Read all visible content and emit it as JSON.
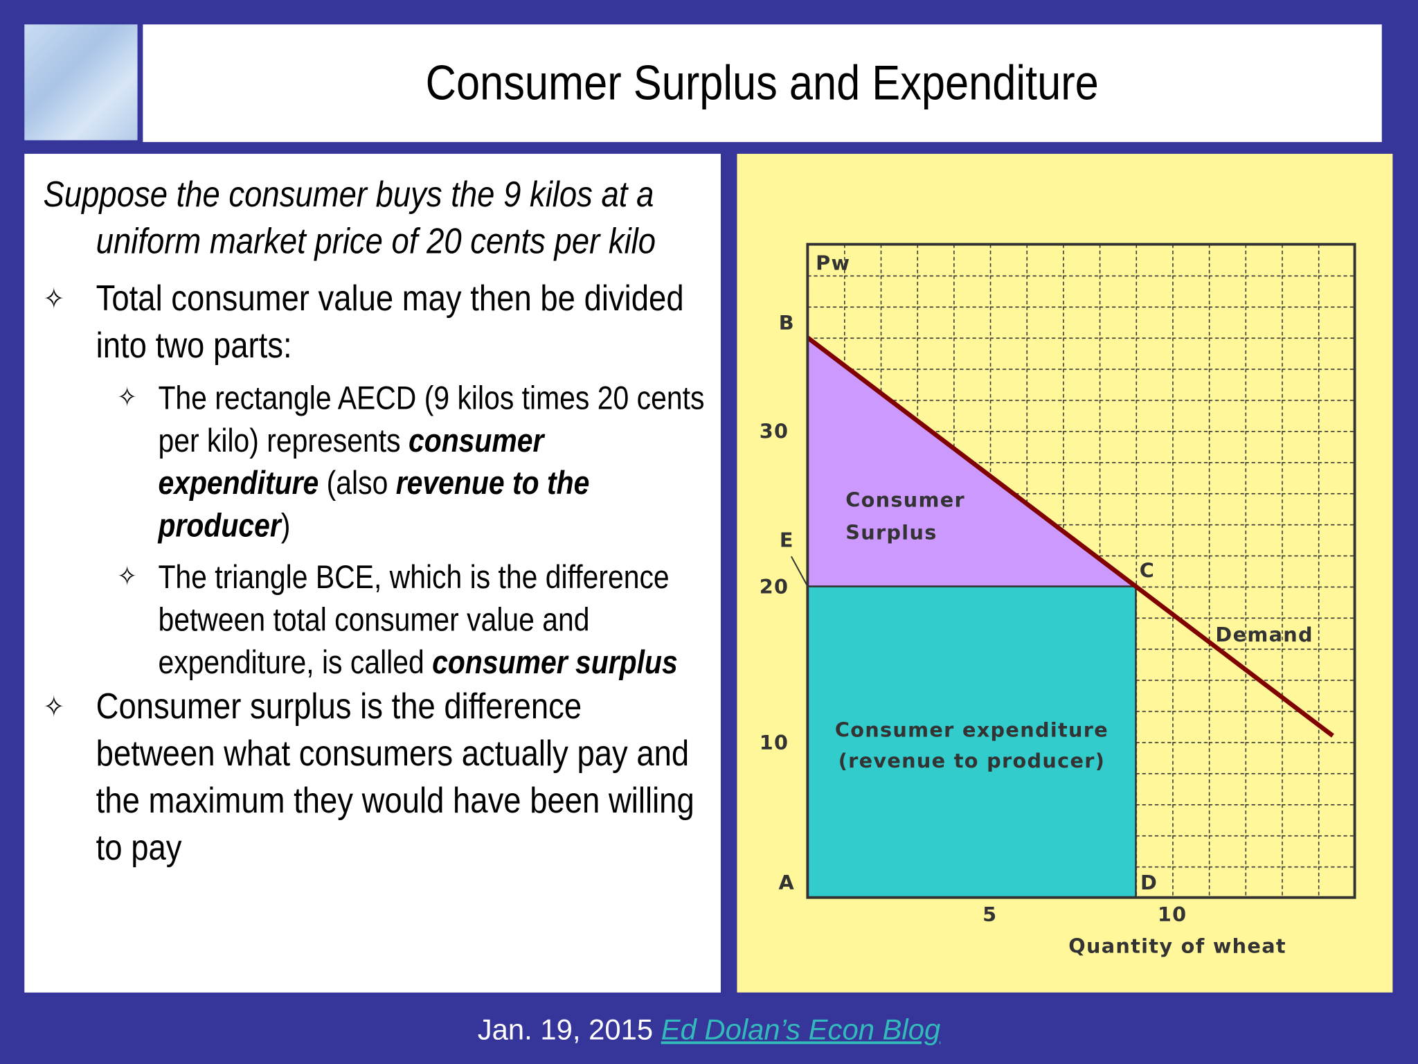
{
  "header": {
    "title": "Consumer Surplus and Expenditure"
  },
  "body": {
    "intro": "Suppose the consumer buys the 9 kilos at a uniform market price of 20 cents  per kilo",
    "bullets": [
      {
        "text": "Total consumer value may then be divided into two parts:",
        "subbullets": [
          {
            "runs": [
              {
                "text": "The rectangle AECD (9 kilos times 20 cents per kilo) represents "
              },
              {
                "text": "consumer expenditure",
                "bold": true
              },
              {
                "text": " (also "
              },
              {
                "text": "revenue to the producer",
                "bold": true
              },
              {
                "text": ")"
              }
            ]
          },
          {
            "runs": [
              {
                "text": "The triangle BCE, which is the difference between total consumer value and expenditure, is called "
              },
              {
                "text": "consumer surplus",
                "bold": true
              }
            ]
          }
        ]
      },
      {
        "text": "Consumer surplus is the difference between what consumers actually pay and the maximum they would have been willing to pay"
      }
    ]
  },
  "chart": {
    "type": "area",
    "x_label": "Quantity of wheat",
    "y_label": "Pw",
    "xlim": [
      0,
      15
    ],
    "ylim": [
      0,
      42
    ],
    "xticks": [
      5,
      10
    ],
    "yticks": [
      10,
      20,
      30
    ],
    "background": "#fff799",
    "demand": {
      "name": "Demand",
      "color": "#800000",
      "x": [
        0,
        9,
        14.4
      ],
      "y": [
        36,
        20,
        10.4
      ]
    },
    "price": 20,
    "quantity": 9,
    "surplus": {
      "label": [
        "Consumer",
        "Surplus"
      ],
      "color": "#cc99ff"
    },
    "expenditure": {
      "label": [
        "Consumer expenditure",
        "(revenue to producer)"
      ],
      "color": "#33cccc"
    },
    "points": [
      {
        "label": "B",
        "x": 0,
        "y": 36
      },
      {
        "label": "E",
        "x": 0,
        "y": 20
      },
      {
        "label": "C",
        "x": 9,
        "y": 20
      },
      {
        "label": "A",
        "x": 0,
        "y": 0
      },
      {
        "label": "D",
        "x": 9,
        "y": 0
      }
    ]
  },
  "footer": {
    "date": "Jan. 19, 2015",
    "link": "Ed Dolan’s Econ Blog"
  }
}
